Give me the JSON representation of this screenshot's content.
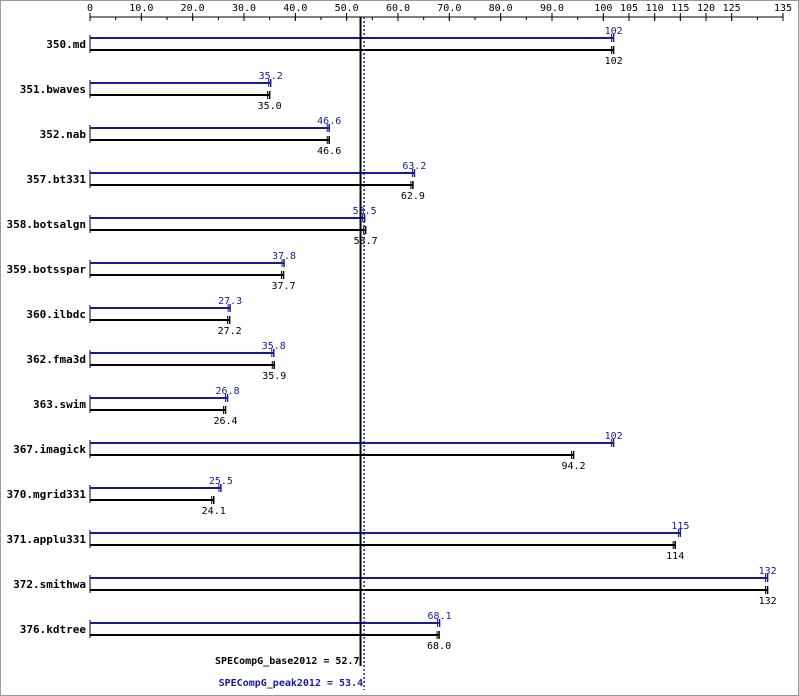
{
  "chart_data": {
    "type": "bar",
    "orientation": "horizontal",
    "x_ticks": [
      "0",
      "10.0",
      "20.0",
      "30.0",
      "40.0",
      "50.0",
      "60.0",
      "70.0",
      "80.0",
      "90.0",
      "100",
      "105",
      "110",
      "115",
      "120",
      "125",
      "135"
    ],
    "x_tick_values": [
      0,
      10,
      20,
      30,
      40,
      50,
      60,
      70,
      80,
      90,
      100,
      105,
      110,
      115,
      120,
      125,
      135
    ],
    "xlim": [
      0,
      135
    ],
    "categories": [
      "350.md",
      "351.bwaves",
      "352.nab",
      "357.bt331",
      "358.botsalgn",
      "359.botsspar",
      "360.ilbdc",
      "362.fma3d",
      "363.swim",
      "367.imagick",
      "370.mgrid331",
      "371.applu331",
      "372.smithwa",
      "376.kdtree"
    ],
    "series": [
      {
        "key": "peak",
        "color": "#1a1a99",
        "values": [
          102,
          35.2,
          46.6,
          63.2,
          53.5,
          37.8,
          27.3,
          35.8,
          26.8,
          102,
          25.5,
          115,
          132,
          68.1
        ],
        "labels": [
          "102",
          "35.2",
          "46.6",
          "63.2",
          "53.5",
          "37.8",
          "27.3",
          "35.8",
          "26.8",
          "102",
          "25.5",
          "115",
          "132",
          "68.1"
        ]
      },
      {
        "key": "base",
        "color": "#000000",
        "values": [
          102,
          35.0,
          46.6,
          62.9,
          53.7,
          37.7,
          27.2,
          35.9,
          26.4,
          94.2,
          24.1,
          114,
          132,
          68.0
        ],
        "labels": [
          "102",
          "35.0",
          "46.6",
          "62.9",
          "53.7",
          "37.7",
          "27.2",
          "35.9",
          "26.4",
          "94.2",
          "24.1",
          "114",
          "132",
          "68.0"
        ]
      }
    ],
    "reference_lines": [
      {
        "key": "base",
        "value": 52.7,
        "label": "SPECompG_base2012 = 52.7",
        "style": "solid",
        "color": "#000000"
      },
      {
        "key": "peak",
        "value": 53.4,
        "label": "SPECompG_peak2012 = 53.4",
        "style": "dotted",
        "color": "#1a1a99"
      }
    ],
    "grid": false,
    "legend": "none"
  }
}
